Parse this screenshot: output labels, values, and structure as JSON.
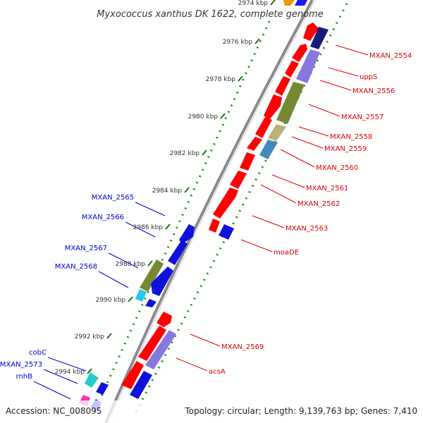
{
  "title": "Myxococcus xanthus DK 1622, complete genome",
  "footer": {
    "accession": "Accession: NC_008095",
    "stats": "Topology: circular; Length: 9,139,763 bp; Genes: 7,410"
  },
  "colors": {
    "forward_label": "#dd0000",
    "reverse_label": "#0000cc",
    "backbone": "#777777",
    "tick_green": "#1a8a1a",
    "bp_tick": "#117711"
  },
  "ticks": [
    {
      "label": "2974 kbp"
    },
    {
      "label": "2976 kbp"
    },
    {
      "label": "2978 kbp"
    },
    {
      "label": "2980 kbp"
    },
    {
      "label": "2982 kbp"
    },
    {
      "label": "2984 kbp"
    },
    {
      "label": "2986 kbp"
    },
    {
      "label": "2988 kbp"
    },
    {
      "label": "2990 kbp"
    },
    {
      "label": "2992 kbp"
    },
    {
      "label": "2994 kbp"
    }
  ],
  "forward_labels": [
    {
      "text": "MXAN_2554"
    },
    {
      "text": "uppS"
    },
    {
      "text": "MXAN_2556"
    },
    {
      "text": "MXAN_2557"
    },
    {
      "text": "MXAN_2558"
    },
    {
      "text": "MXAN_2559"
    },
    {
      "text": "MXAN_2560"
    },
    {
      "text": "MXAN_2561"
    },
    {
      "text": "MXAN_2562"
    },
    {
      "text": "MXAN_2563"
    },
    {
      "text": "moaDE"
    },
    {
      "text": "MXAN_2569"
    },
    {
      "text": "acsA"
    }
  ],
  "reverse_labels": [
    {
      "text": "MXAN_2565"
    },
    {
      "text": "MXAN_2566"
    },
    {
      "text": "MXAN_2567"
    },
    {
      "text": "MXAN_2568"
    },
    {
      "text": "cobC"
    },
    {
      "text": "MXAN_2573"
    },
    {
      "text": "rnhB"
    }
  ]
}
